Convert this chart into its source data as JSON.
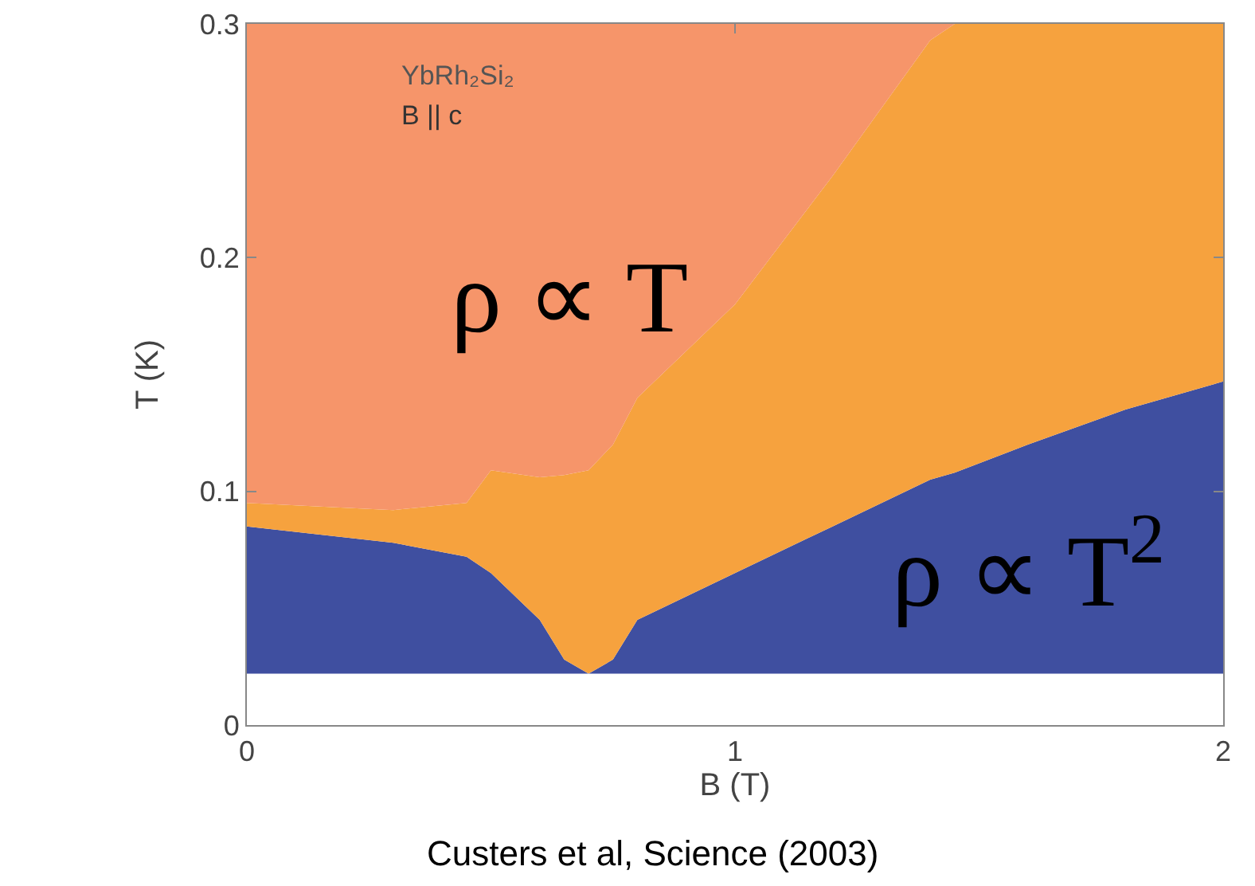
{
  "chart_data": {
    "type": "area",
    "stacked": true,
    "xlabel": "B (T)",
    "ylabel": "T (K)",
    "x": [
      0,
      0.3,
      0.45,
      0.5,
      0.6,
      0.65,
      0.7,
      0.75,
      0.8,
      1.0,
      1.2,
      1.4,
      1.45,
      1.6,
      1.8,
      2.0
    ],
    "series": [
      {
        "color": "#3f4fa0",
        "values": [
          0.085,
          0.078,
          0.072,
          0.065,
          0.045,
          0.028,
          0.022,
          0.028,
          0.045,
          0.065,
          0.085,
          0.105,
          0.108,
          0.12,
          0.135,
          0.147
        ]
      },
      {
        "color": "#f6a23e",
        "values": [
          0.01,
          0.014,
          0.023,
          0.044,
          0.061,
          0.079,
          0.087,
          0.092,
          0.095,
          0.115,
          0.15,
          0.188,
          0.192,
          0.18,
          0.165,
          0.153
        ]
      },
      {
        "color": "#f6956a",
        "values": [
          0.205,
          0.208,
          0.205,
          0.191,
          0.194,
          0.193,
          0.191,
          0.18,
          0.16,
          0.12,
          0.065,
          0.007,
          0,
          0,
          0,
          0
        ]
      }
    ],
    "xlim": [
      0,
      2
    ],
    "xticks": [
      0,
      1,
      2
    ],
    "ylim": [
      0,
      0.3
    ],
    "yticks": [
      0,
      0.1,
      0.2,
      0.3
    ],
    "bands": [
      {
        "axis": "y",
        "from": 0,
        "to": 0.022,
        "color": "#ffffff"
      }
    ],
    "annotations": [
      "ρ ∝ T",
      "ρ ∝ T$^{2}$",
      "YbRh₂Si₂",
      "B || c",
      "Custers et al, Science (2003)"
    ]
  }
}
